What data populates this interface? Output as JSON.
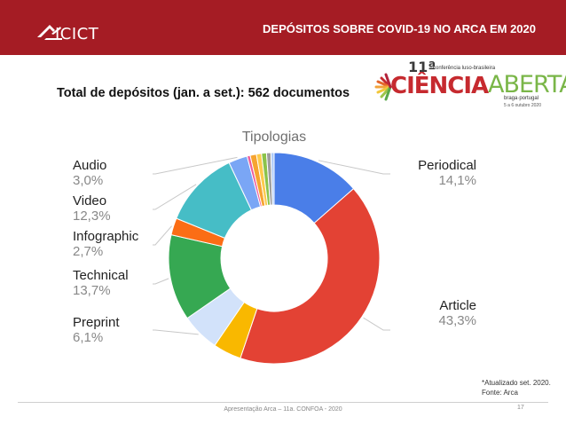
{
  "header": {
    "logo_text": "ICICT",
    "title": "DEPÓSITOS SOBRE COVID-19 NO ARCA EM 2020",
    "background": "#a51c24"
  },
  "heading": "Total de depósitos (jan. a set.): 562 documentos",
  "conference_logo": {
    "number": "11ª",
    "subtitle": "conferência luso-brasileira",
    "word1": "CIÊNCIA",
    "word2": "ABERTA",
    "location": "braga·portugal",
    "dates": "5 a 6 outubro 2020"
  },
  "chart_data": {
    "type": "pie",
    "style": "donut",
    "title": "Tipologias",
    "slices": [
      {
        "label": "Periodical",
        "percent_label": "14,1%",
        "value": 14.1,
        "color": "#4a7ee8"
      },
      {
        "label": "Article",
        "percent_label": "43,3%",
        "value": 43.3,
        "color": "#e34234"
      },
      {
        "label": "",
        "percent_label": "",
        "value": 4.5,
        "color": "#f9b800"
      },
      {
        "label": "Preprint",
        "percent_label": "6,1%",
        "value": 6.1,
        "color": "#d2e2fa"
      },
      {
        "label": "Technical",
        "percent_label": "13,7%",
        "value": 13.7,
        "color": "#36a852"
      },
      {
        "label": "Infographic",
        "percent_label": "2,7%",
        "value": 2.7,
        "color": "#fb6d15"
      },
      {
        "label": "Video",
        "percent_label": "12,3%",
        "value": 12.3,
        "color": "#46bdc6"
      },
      {
        "label": "Audio",
        "percent_label": "3,0%",
        "value": 3.0,
        "color": "#7aa6f5"
      },
      {
        "label": "",
        "percent_label": "",
        "value": 0.5,
        "color": "#ee5c9c"
      },
      {
        "label": "",
        "percent_label": "",
        "value": 1.0,
        "color": "#f6a430"
      },
      {
        "label": "",
        "percent_label": "",
        "value": 0.8,
        "color": "#fccb4c"
      },
      {
        "label": "",
        "percent_label": "",
        "value": 0.8,
        "color": "#8bc34a"
      },
      {
        "label": "",
        "percent_label": "",
        "value": 0.7,
        "color": "#9e9e9e"
      },
      {
        "label": "",
        "percent_label": "",
        "value": 0.5,
        "color": "#aecbfa"
      }
    ],
    "legend": "outside-labels"
  },
  "note": {
    "line1": "*Atualizado set. 2020.",
    "line2": "Fonte: Arca"
  },
  "footer": {
    "text": "Apresentação Arca – 11a. CONFOA - 2020",
    "page": "17"
  }
}
